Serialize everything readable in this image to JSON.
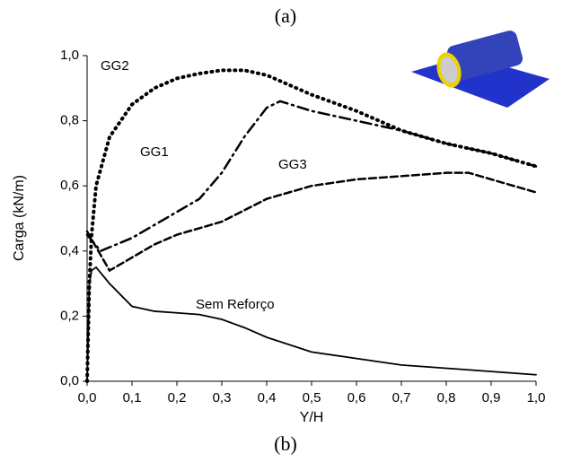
{
  "chart_data": {
    "type": "line",
    "title": "(a)",
    "subtitle": "(b)",
    "x_label": "Y/H",
    "y_label": "Carga  (kN/m)",
    "xlim": [
      0,
      1
    ],
    "ylim": [
      0,
      1
    ],
    "xticks": [
      {
        "value": 0,
        "label": "0,0"
      },
      {
        "value": 0.1,
        "label": "0,1"
      },
      {
        "value": 0.2,
        "label": "0,2"
      },
      {
        "value": 0.3,
        "label": "0,3"
      },
      {
        "value": 0.4,
        "label": "0,4"
      },
      {
        "value": 0.5,
        "label": "0,5"
      },
      {
        "value": 0.6,
        "label": "0,6"
      },
      {
        "value": 0.7,
        "label": "0,7"
      },
      {
        "value": 0.8,
        "label": "0,8"
      },
      {
        "value": 0.9,
        "label": "0,9"
      },
      {
        "value": 1,
        "label": "1,0"
      }
    ],
    "yticks": [
      {
        "value": 0,
        "label": "0,0"
      },
      {
        "value": 0.2,
        "label": "0,2"
      },
      {
        "value": 0.4,
        "label": "0,4"
      },
      {
        "value": 0.6,
        "label": "0,6"
      },
      {
        "value": 0.8,
        "label": "0,8"
      },
      {
        "value": 1,
        "label": "1,0"
      }
    ],
    "series": [
      {
        "name": "GG2",
        "color": "#000000",
        "dash": "dotted",
        "x": [
          0,
          0.005,
          0.01,
          0.02,
          0.05,
          0.1,
          0.15,
          0.2,
          0.25,
          0.3,
          0.35,
          0.4,
          0.5,
          0.6,
          0.7,
          0.8,
          0.9,
          1.0
        ],
        "values": [
          0,
          0.3,
          0.45,
          0.6,
          0.75,
          0.85,
          0.9,
          0.93,
          0.945,
          0.955,
          0.955,
          0.94,
          0.88,
          0.83,
          0.77,
          0.73,
          0.7,
          0.66
        ]
      },
      {
        "name": "GG1",
        "color": "#000000",
        "dash": "dashdot",
        "x": [
          0,
          0.03,
          0.1,
          0.2,
          0.25,
          0.3,
          0.35,
          0.4,
          0.43,
          0.5,
          0.6,
          0.7,
          0.8,
          0.9,
          1.0
        ],
        "values": [
          0.45,
          0.4,
          0.44,
          0.52,
          0.56,
          0.64,
          0.75,
          0.84,
          0.86,
          0.83,
          0.8,
          0.77,
          0.73,
          0.7,
          0.66
        ]
      },
      {
        "name": "GG3",
        "color": "#000000",
        "dash": "dashed",
        "x": [
          0,
          0.05,
          0.1,
          0.15,
          0.2,
          0.3,
          0.4,
          0.5,
          0.6,
          0.7,
          0.8,
          0.85,
          0.9,
          1.0
        ],
        "values": [
          0.46,
          0.34,
          0.38,
          0.42,
          0.45,
          0.49,
          0.56,
          0.6,
          0.62,
          0.63,
          0.64,
          0.64,
          0.62,
          0.58
        ]
      },
      {
        "name": "Sem Reforço",
        "color": "#000000",
        "dash": "solid",
        "x": [
          0,
          0.005,
          0.01,
          0.02,
          0.05,
          0.1,
          0.15,
          0.2,
          0.25,
          0.3,
          0.35,
          0.4,
          0.5,
          0.6,
          0.7,
          0.8,
          0.9,
          1.0
        ],
        "values": [
          0,
          0.3,
          0.34,
          0.35,
          0.3,
          0.23,
          0.215,
          0.21,
          0.205,
          0.19,
          0.165,
          0.135,
          0.09,
          0.07,
          0.05,
          0.04,
          0.03,
          0.02
        ]
      }
    ]
  }
}
